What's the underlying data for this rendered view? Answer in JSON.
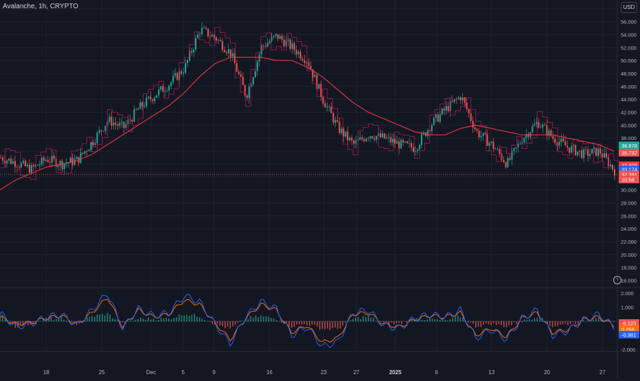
{
  "header": {
    "symbol_title": "Avalanche, 1h, CRYPTO",
    "currency": "USD"
  },
  "colors": {
    "background": "#131722",
    "grid": "#1e222d",
    "up": "#26a69a",
    "down": "#ef5350",
    "ma_line": "#f23645",
    "stop_line": "#c2185b",
    "macd": "#2962ff",
    "signal": "#ff6d00"
  },
  "chart_data": [
    {
      "type": "line",
      "title": "Avalanche, 1h, CRYPTO",
      "y_axis_label": "USD",
      "yticks": [
        "58.000",
        "56.000",
        "54.000",
        "52.000",
        "50.000",
        "48.000",
        "46.000",
        "44.000",
        "42.000",
        "40.000",
        "38.000",
        "36.000",
        "34.000",
        "32.000",
        "30.000",
        "28.000",
        "26.000",
        "24.000",
        "22.000",
        "20.000",
        "18.000",
        "16.000"
      ],
      "ylim": [
        15,
        58.5
      ],
      "xticks": [
        "18",
        "25",
        "Dec",
        "5",
        "9",
        "16",
        "23",
        "27",
        "2025",
        "6",
        "13",
        "20",
        "27"
      ],
      "x": [
        0,
        2,
        4,
        6,
        8,
        10,
        12,
        14,
        16,
        18,
        20,
        22,
        24,
        26,
        28,
        30,
        32,
        34,
        36,
        38,
        40,
        42,
        44,
        46,
        48,
        50,
        52,
        54,
        56,
        58,
        60,
        62,
        64,
        66,
        68,
        70,
        72,
        74,
        76,
        78,
        80
      ],
      "series": [
        {
          "name": "price",
          "values": [
            35.0,
            34.2,
            33.2,
            34.8,
            34.0,
            34.6,
            37.5,
            40.8,
            39.6,
            42.6,
            44.6,
            46.4,
            48.9,
            54.8,
            53.5,
            51.1,
            44.5,
            52.1,
            53.8,
            52.0,
            50.0,
            44.0,
            39.5,
            37.0,
            38.6,
            38.0,
            37.0,
            36.5,
            40.0,
            42.5,
            44.5,
            39.0,
            37.0,
            34.0,
            38.0,
            40.5,
            38.0,
            36.5,
            35.5,
            36.0,
            33.0
          ]
        },
        {
          "name": "moving average",
          "values": [
            30.0,
            31.5,
            32.5,
            33.5,
            34.0,
            34.5,
            35.5,
            37.0,
            38.5,
            40.0,
            41.5,
            43.0,
            45.0,
            47.5,
            49.5,
            50.5,
            50.5,
            50.5,
            50.0,
            50.0,
            49.0,
            47.5,
            45.5,
            43.5,
            42.0,
            41.0,
            40.0,
            39.0,
            38.5,
            38.5,
            39.5,
            40.0,
            39.5,
            39.0,
            38.5,
            38.5,
            38.5,
            38.0,
            37.5,
            37.0,
            36.0
          ]
        }
      ],
      "price_labels": [
        {
          "value": "36.878",
          "color": "#26a69a"
        },
        {
          "value": "35.737",
          "color": "#ef5350"
        },
        {
          "value": "33.809",
          "color": "#f23645"
        },
        {
          "value": "33.174",
          "color": "#2962ff"
        },
        {
          "value": "32.391",
          "color": "#ef5350"
        },
        {
          "value": "10:58",
          "color": "#ef5350"
        }
      ],
      "dotted_level": 32.391,
      "grid": true
    },
    {
      "type": "line",
      "yticks": [
        "2.000",
        "1.000",
        "-2.000"
      ],
      "ylim": [
        -2.1,
        2.2
      ],
      "series": [
        {
          "name": "macd",
          "values": [
            0.6,
            -0.4,
            -0.2,
            0.3,
            0.5,
            -0.3,
            0.8,
            2.0,
            -0.5,
            0.9,
            0.4,
            0.6,
            1.8,
            1.4,
            -0.2,
            -1.6,
            0.3,
            1.4,
            0.9,
            -1.0,
            -0.4,
            -1.8,
            -1.5,
            0.6,
            0.8,
            -0.3,
            -0.5,
            0.2,
            0.5,
            0.3,
            0.8,
            -1.2,
            -0.6,
            -1.3,
            0.2,
            0.8,
            -1.0,
            -0.7,
            0.1,
            0.5,
            -0.4
          ]
        },
        {
          "name": "signal",
          "values": [
            0.3,
            -0.2,
            -0.1,
            0.2,
            0.4,
            -0.2,
            0.6,
            1.7,
            -0.4,
            0.8,
            0.3,
            0.5,
            1.5,
            1.2,
            -0.1,
            -1.3,
            0.2,
            1.2,
            0.8,
            -0.8,
            -0.3,
            -1.5,
            -1.2,
            0.5,
            0.6,
            -0.2,
            -0.4,
            0.1,
            0.4,
            0.3,
            0.6,
            -1.0,
            -0.5,
            -1.1,
            0.2,
            0.6,
            -0.8,
            -0.6,
            0.1,
            0.3,
            -0.3
          ]
        }
      ],
      "value_labels": [
        {
          "value": "-0.123",
          "color": "#ef5350"
        },
        {
          "value": "0.258",
          "color": "#ff6d00"
        },
        {
          "value": "-0.381",
          "color": "#2962ff"
        }
      ]
    }
  ]
}
